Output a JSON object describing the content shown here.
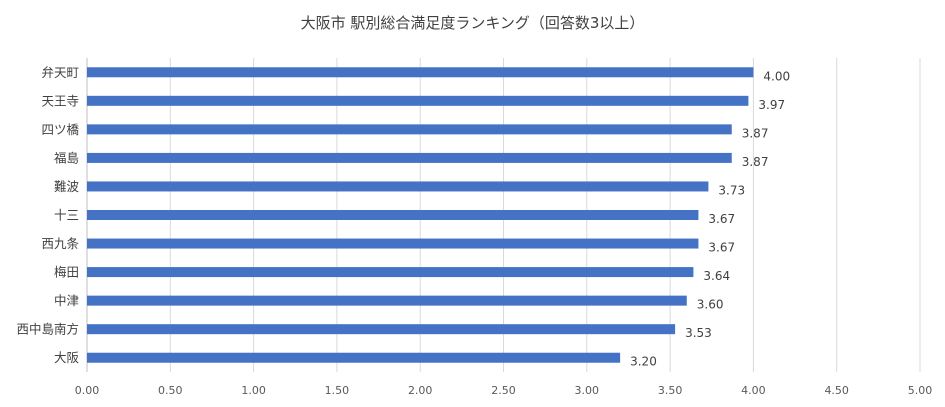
{
  "chart_data": {
    "type": "bar",
    "orientation": "horizontal",
    "title": "大阪市 駅別総合満足度ランキング（回答数3以上）",
    "categories": [
      "弁天町",
      "天王寺",
      "四ツ橋",
      "福島",
      "難波",
      "十三",
      "西九条",
      "梅田",
      "中津",
      "西中島南方",
      "大阪"
    ],
    "values": [
      4.0,
      3.97,
      3.87,
      3.87,
      3.73,
      3.67,
      3.67,
      3.64,
      3.6,
      3.53,
      3.2
    ],
    "value_labels": [
      "4.00",
      "3.97",
      "3.87",
      "3.87",
      "3.73",
      "3.67",
      "3.67",
      "3.64",
      "3.60",
      "3.53",
      "3.20"
    ],
    "xlim": [
      0,
      5
    ],
    "xticks": [
      "0.00",
      "0.50",
      "1.00",
      "1.50",
      "2.00",
      "2.50",
      "3.00",
      "3.50",
      "4.00",
      "4.50",
      "5.00"
    ],
    "xlabel": "",
    "ylabel": "",
    "grid": "vertical",
    "legend": "none",
    "bar_color": "#4472c4",
    "grid_color": "#d9d9d9"
  }
}
